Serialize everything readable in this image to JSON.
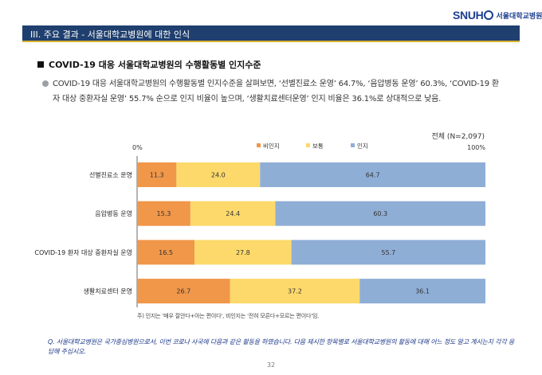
{
  "header": {
    "logo_mark": "SNUH",
    "logo_text": "서울대학교병원"
  },
  "section_title": "III. 주요 결과 - 서울대학교병원에 대한 인식",
  "heading": "COVID-19 대응 서울대학교병원의 수행활동별 인지수준",
  "summary": "COVID-19 대응 서울대학교병원의 수행활동별 인지수준을 살펴보면, ‘선별진료소 운영’ 64.7%, ‘음압병동 운영’ 60.3%, ‘COVID-19 환자 대상 중환자실 운영’ 55.7% 순으로 인지 비율이 높으며, ‘생활치료센터운영’ 인지 비율은 36.1%로 상대적으로 낮음.",
  "total_label": "전체 (N=2,097)",
  "note": "주) 인지는 '매우 잘안다+아는 편이다', 비인지는 '전혀 모른다+모르는 편이다'임.",
  "question": "Q. 서울대학교병원은 국가중심병원으로서, 이번 코로나 사국에 다음과 같은 활동을 하였습니다. 다음 제시한 항목별로 서울대학교병원의 활동에 대해 어느 정도 알고 계시는지 각각 응답해 주십시오.",
  "page_number": "32",
  "chart_data": {
    "type": "bar",
    "orientation": "horizontal",
    "stacked": true,
    "categories": [
      "선별진료소 운영",
      "음압병동 운영",
      "COVID-19 환자 대상 중환자실 운영",
      "생활치료센터 운영"
    ],
    "series": [
      {
        "name": "비인지",
        "color": "#f0974a",
        "values": [
          11.3,
          15.3,
          16.5,
          26.7
        ]
      },
      {
        "name": "보통",
        "color": "#fcd96a",
        "values": [
          24.0,
          24.4,
          27.8,
          37.2
        ]
      },
      {
        "name": "인지",
        "color": "#8faed6",
        "values": [
          64.7,
          60.3,
          55.7,
          36.1
        ]
      }
    ],
    "xlim": [
      0,
      100
    ],
    "tick_labels": [
      "0%",
      "100%"
    ],
    "legend_position": "top-center",
    "grid": false
  }
}
